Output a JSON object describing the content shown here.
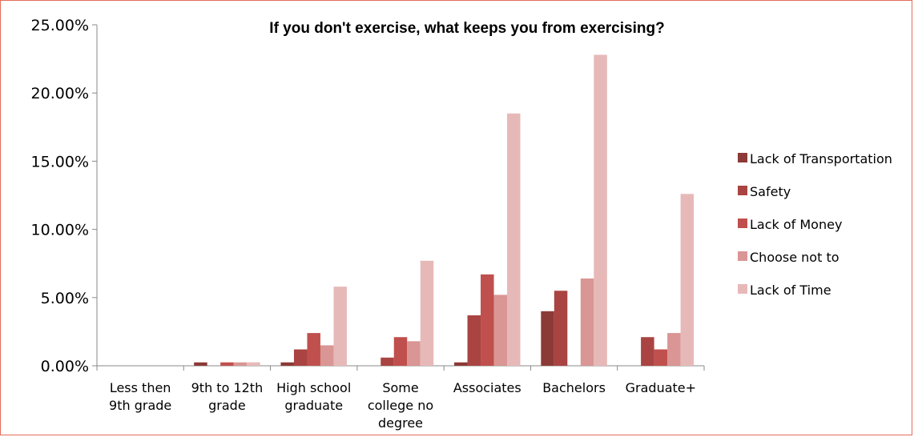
{
  "chart_data": {
    "type": "bar",
    "title": "If you don't exercise, what keeps you from exercising?",
    "categories": [
      [
        "Less then",
        "9th grade"
      ],
      [
        "9th to 12th",
        "grade"
      ],
      [
        "High school",
        "graduate"
      ],
      [
        "Some",
        "college no",
        "degree"
      ],
      [
        "Associates"
      ],
      [
        "Bachelors"
      ],
      [
        "Graduate+"
      ]
    ],
    "yticks": [
      "0.00%",
      "5.00%",
      "10.00%",
      "15.00%",
      "20.00%",
      "25.00%"
    ],
    "ylim": [
      0,
      25
    ],
    "legend_position": "right",
    "series": [
      {
        "name": "Lack of Transportation",
        "color": "#8b3a37",
        "values": [
          0,
          0.25,
          0.25,
          0,
          0.25,
          4.0,
          0
        ]
      },
      {
        "name": "Safety",
        "color": "#a94442",
        "values": [
          0,
          0,
          1.2,
          0.6,
          3.7,
          5.5,
          2.1
        ]
      },
      {
        "name": "Lack of Money",
        "color": "#c0504d",
        "values": [
          0,
          0.25,
          2.4,
          2.1,
          6.7,
          0,
          1.2
        ]
      },
      {
        "name": "Choose not to",
        "color": "#d99694",
        "values": [
          0,
          0.25,
          1.5,
          1.8,
          5.2,
          6.4,
          2.4
        ]
      },
      {
        "name": "Lack of Time",
        "color": "#e6b9b8",
        "values": [
          0,
          0.25,
          5.8,
          7.7,
          18.5,
          22.8,
          12.6
        ]
      }
    ]
  }
}
